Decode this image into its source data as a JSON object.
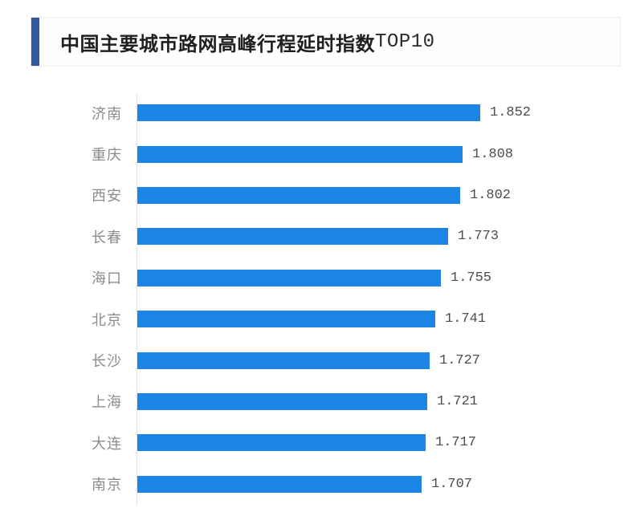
{
  "header": {
    "title_main": "中国主要城市路网高峰行程延时指数",
    "title_suffix": "TOP10",
    "accent_color": "#33589e"
  },
  "chart_data": {
    "type": "bar",
    "orientation": "horizontal",
    "title": "中国主要城市路网高峰行程延时指数TOP10",
    "categories": [
      "济南",
      "重庆",
      "西安",
      "长春",
      "海口",
      "北京",
      "长沙",
      "上海",
      "大连",
      "南京"
    ],
    "values": [
      1.852,
      1.808,
      1.802,
      1.773,
      1.755,
      1.741,
      1.727,
      1.721,
      1.717,
      1.707
    ],
    "value_labels": [
      "1.852",
      "1.808",
      "1.802",
      "1.773",
      "1.755",
      "1.741",
      "1.727",
      "1.721",
      "1.717",
      "1.707"
    ],
    "xlabel": "",
    "ylabel": "",
    "xlim": [
      1.0,
      1.9
    ],
    "grid": false,
    "legend": false,
    "bar_color": "#1b84e5",
    "category_label_color": "#8c8c8c",
    "value_label_color": "#4d4d4d"
  }
}
